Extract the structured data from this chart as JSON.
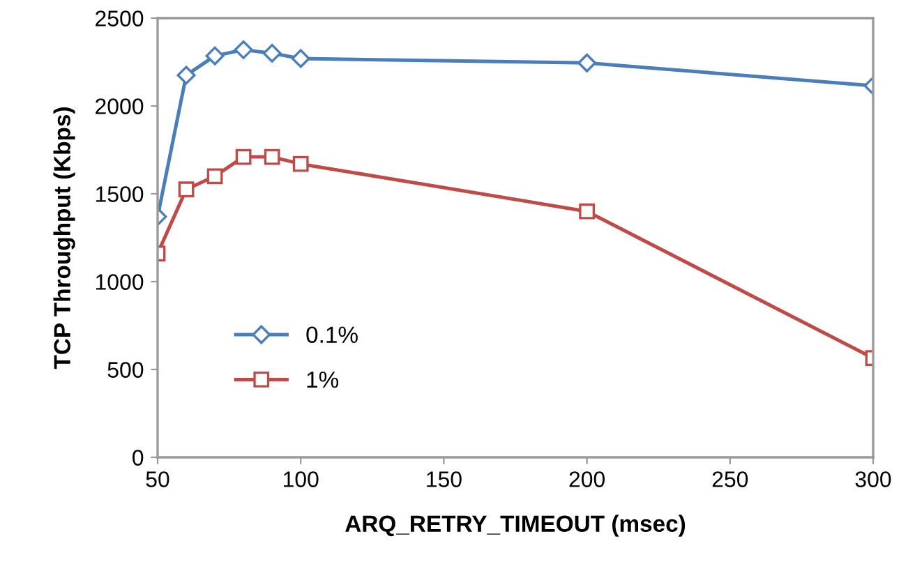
{
  "chart_data": {
    "type": "line",
    "xlabel": "ARQ_RETRY_TIMEOUT (msec)",
    "ylabel": "TCP Throughput (Kbps)",
    "x": [
      50,
      60,
      70,
      80,
      90,
      100,
      200,
      300
    ],
    "series": [
      {
        "name": "0.1%",
        "color": "#4a7ebb",
        "marker": "diamond",
        "values": [
          1370,
          2175,
          2285,
          2320,
          2300,
          2270,
          2245,
          2115
        ]
      },
      {
        "name": "1%",
        "color": "#be4b48",
        "marker": "square",
        "values": [
          1160,
          1525,
          1600,
          1710,
          1710,
          1670,
          1400,
          565
        ]
      }
    ],
    "xlim": [
      50,
      300
    ],
    "xticks": [
      50,
      100,
      150,
      200,
      250,
      300
    ],
    "ylim": [
      0,
      2500
    ],
    "yticks": [
      0,
      500,
      1000,
      1500,
      2000,
      2500
    ],
    "grid": false,
    "legend": "lower left",
    "line_style": "solid"
  }
}
